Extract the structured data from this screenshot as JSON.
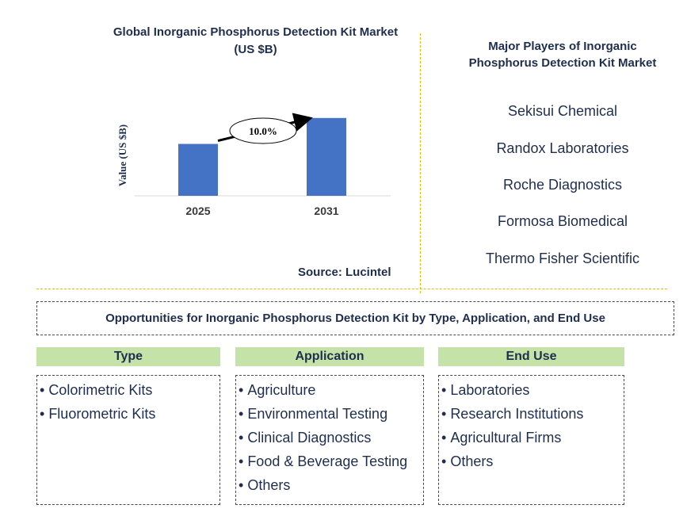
{
  "chart_data": {
    "type": "bar",
    "title": [
      "Global Inorganic Phosphorus Detection Kit Market",
      "(US $B)"
    ],
    "ylabel": "Value (US $B)",
    "categories": [
      "2025",
      "2031"
    ],
    "values": [
      0.36,
      0.54
    ],
    "ylim": [
      0,
      0.55
    ],
    "annotation": "10.0%",
    "colors": {
      "bar": "#4472c4"
    },
    "grid": false
  },
  "source": "Source: Lucintel",
  "players": {
    "title": [
      "Major Players of Inorganic",
      "Phosphorus Detection Kit Market"
    ],
    "items": [
      "Sekisui Chemical",
      "Randox Laboratories",
      "Roche Diagnostics",
      "Formosa Biomedical",
      "Thermo Fisher Scientific"
    ]
  },
  "opportunities": {
    "title": "Opportunities for Inorganic Phosphorus Detection Kit by Type, Application, and End Use",
    "columns": [
      {
        "heading": "Type",
        "items": [
          "Colorimetric Kits",
          "Fluorometric Kits"
        ]
      },
      {
        "heading": "Application",
        "items": [
          "Agriculture",
          "Environmental Testing",
          "Clinical Diagnostics",
          "Food & Beverage Testing",
          "Others"
        ]
      },
      {
        "heading": "End Use",
        "items": [
          "Laboratories",
          "Research Institutions",
          "Agricultural Firms",
          "Others"
        ]
      }
    ]
  },
  "colors": {
    "header_green": "#c5e3a9",
    "divider": "#f0b800",
    "text": "#1f2d4e"
  }
}
